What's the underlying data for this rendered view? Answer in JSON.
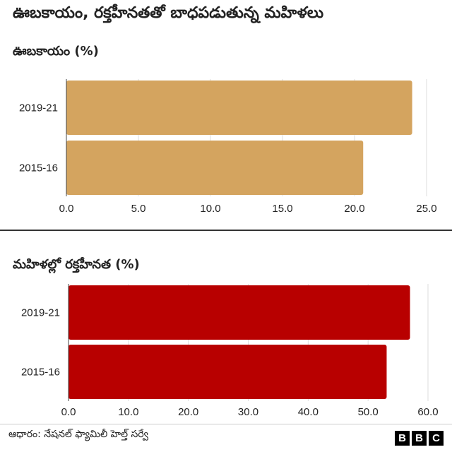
{
  "title": "ఊబకాయం, రక్తహీనతతో బాధపడుతున్న మహిళలు",
  "source": "ఆధారం: నేషనల్ ఫ్యామిలీ హెల్త్ సర్వే",
  "logo": [
    "B",
    "B",
    "C"
  ],
  "chart_data": [
    {
      "type": "bar",
      "orientation": "horizontal",
      "title": "ఊబకాయం (%)",
      "categories": [
        "2019-21",
        "2015-16"
      ],
      "values": [
        24.0,
        20.6
      ],
      "xlim": [
        0,
        25
      ],
      "ticks": [
        "0.0",
        "5.0",
        "10.0",
        "15.0",
        "20.0",
        "25.0"
      ],
      "color": "#D4A45F",
      "grid": true
    },
    {
      "type": "bar",
      "orientation": "horizontal",
      "title": "మహిళల్లో రక్తహీనత (%)",
      "categories": [
        "2019-21",
        "2015-16"
      ],
      "values": [
        57.0,
        53.1
      ],
      "xlim": [
        0,
        60
      ],
      "ticks": [
        "0.0",
        "10.0",
        "20.0",
        "30.0",
        "40.0",
        "50.0",
        "60.0"
      ],
      "color": "#B80000",
      "grid": true
    }
  ]
}
